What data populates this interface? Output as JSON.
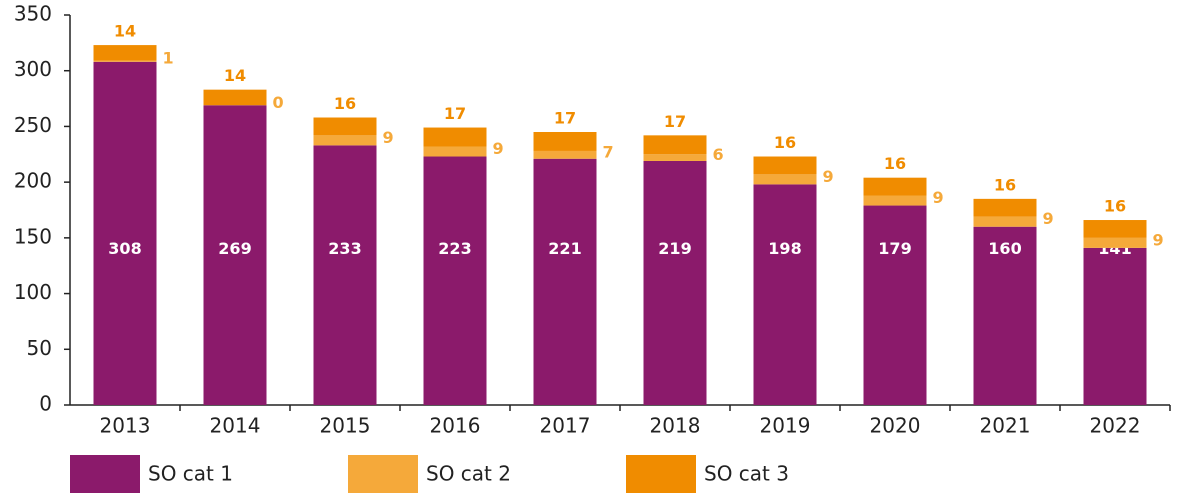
{
  "chart_data": {
    "type": "stacked_bar",
    "categories": [
      "2013",
      "2014",
      "2015",
      "2016",
      "2017",
      "2018",
      "2019",
      "2020",
      "2021",
      "2022"
    ],
    "series": [
      {
        "name": "SO cat 1",
        "color": "#8b1a6b",
        "values": [
          308,
          269,
          233,
          223,
          221,
          219,
          198,
          179,
          160,
          141
        ]
      },
      {
        "name": "SO cat 2",
        "color": "#f5a93a",
        "values": [
          1,
          0,
          9,
          9,
          7,
          6,
          9,
          9,
          9,
          9
        ]
      },
      {
        "name": "SO cat 3",
        "color": "#f08c00",
        "values": [
          14,
          14,
          16,
          17,
          17,
          17,
          16,
          16,
          16,
          16
        ]
      }
    ],
    "ylim": [
      0,
      350
    ],
    "yticks": [
      0,
      50,
      100,
      150,
      200,
      250,
      300,
      350
    ]
  }
}
